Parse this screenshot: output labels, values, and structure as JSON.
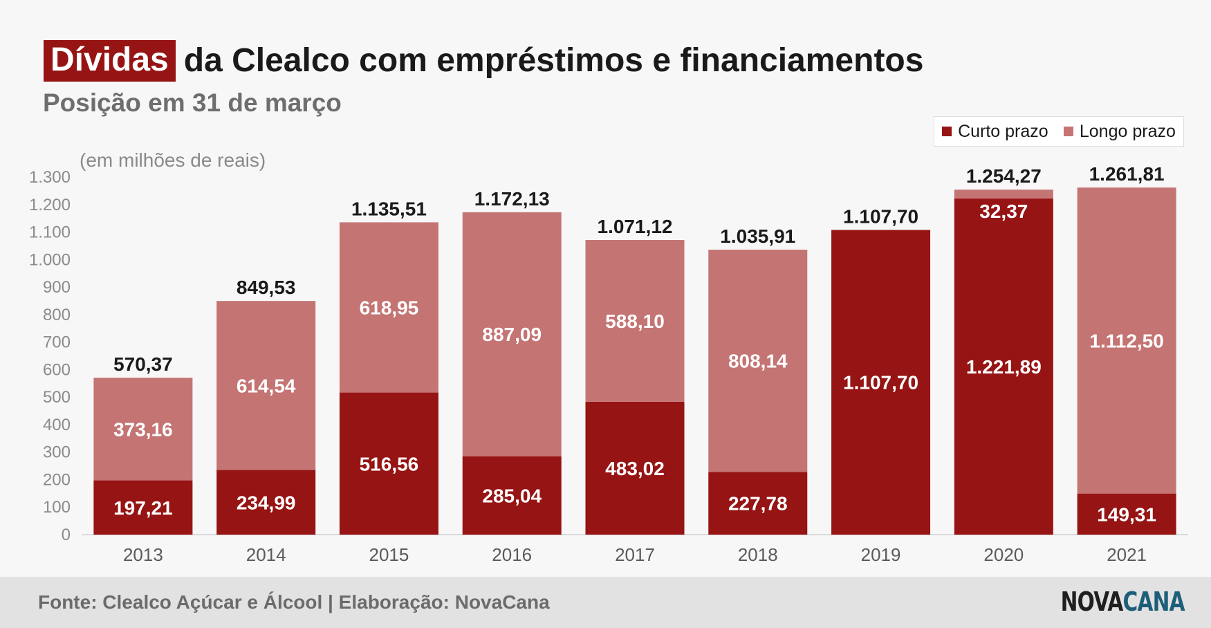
{
  "title": {
    "highlight": "Dívidas",
    "rest": "da Clealco com empréstimos e financiamentos"
  },
  "subtitle": "Posição em 31 de março",
  "footer": {
    "source": "Fonte: Clealco Açúcar e Álcool | Elaboração: NovaCana",
    "logo_part1": "NOVA",
    "logo_part2": "CANA"
  },
  "colors": {
    "curto": "#961414",
    "longo": "#c57474",
    "accent": "#961414"
  },
  "chart_data": {
    "type": "bar",
    "stacked": true,
    "unit_label": "(em milhões de reais)",
    "categories": [
      "2013",
      "2014",
      "2015",
      "2016",
      "2017",
      "2018",
      "2019",
      "2020",
      "2021"
    ],
    "series": [
      {
        "name": "Curto prazo",
        "values": [
          197.21,
          234.99,
          516.56,
          285.04,
          483.02,
          227.78,
          1107.7,
          1221.89,
          149.31
        ],
        "labels": [
          "197,21",
          "234,99",
          "516,56",
          "285,04",
          "483,02",
          "227,78",
          "1.107,70",
          "1.221,89",
          "149,31"
        ]
      },
      {
        "name": "Longo prazo",
        "values": [
          373.16,
          614.54,
          618.95,
          887.09,
          588.1,
          808.14,
          0,
          32.37,
          1112.5
        ],
        "labels": [
          "373,16",
          "614,54",
          "618,95",
          "887,09",
          "588,10",
          "808,14",
          "",
          "32,37",
          "1.112,50"
        ]
      }
    ],
    "totals": [
      "570,37",
      "849,53",
      "1.135,51",
      "1.172,13",
      "1.071,12",
      "1.035,91",
      "1.107,70",
      "1.254,27",
      "1.261,81"
    ],
    "yticks": [
      0,
      100,
      200,
      300,
      400,
      500,
      600,
      700,
      800,
      900,
      1000,
      1100,
      1200,
      1300
    ],
    "ytick_labels": [
      "0",
      "100",
      "200",
      "300",
      "400",
      "500",
      "600",
      "700",
      "800",
      "900",
      "1.000",
      "1.100",
      "1.200",
      "1.300"
    ],
    "ylim": [
      0,
      1300
    ],
    "grid": false,
    "legend_position": "top-right"
  }
}
